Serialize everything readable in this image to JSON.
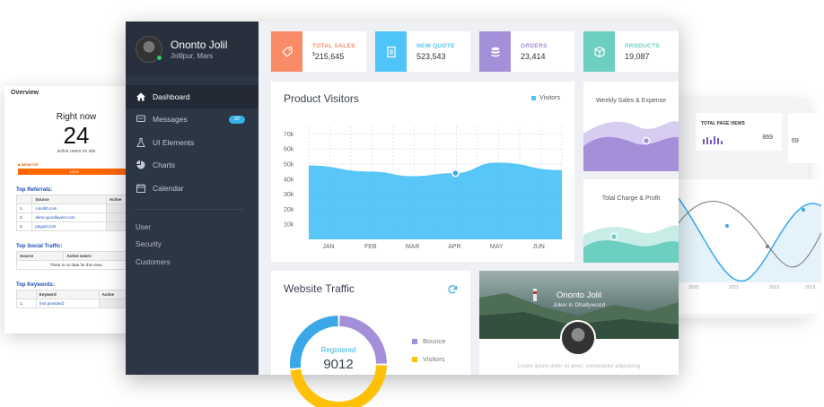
{
  "overview": {
    "title": "Overview",
    "right_now": "Right now",
    "active_count": "24",
    "active_sub": "active users on site",
    "device_label": "DESKTOP",
    "device_pct": "100%",
    "top_referrals": "Top Referrals:",
    "col_source": "Source",
    "col_active": "Active",
    "referrals": [
      "colorlib.com",
      "demo.goodlayers.com",
      "paypal.com"
    ],
    "top_social": "Top Social Traffic:",
    "col_active_users": "Active Users",
    "no_data": "There is no data for this view.",
    "top_keywords": "Top Keywords:",
    "col_keyword": "Keyword",
    "keyword_1": "(not provided)"
  },
  "right_card": {
    "total_page_views": "TOTAL PAGE VIEWS",
    "page_views_value": "869",
    "second_value": "69",
    "years": [
      "2010",
      "2011",
      "2012",
      "2013"
    ]
  },
  "sidebar": {
    "user_name": "Ononto Jolil",
    "user_location": "Jolilpur, Mars",
    "nav": [
      {
        "label": "Dashboard",
        "icon": "home-icon"
      },
      {
        "label": "Messages",
        "icon": "chat-icon",
        "badge": "32"
      },
      {
        "label": "UI Elements",
        "icon": "flask-icon"
      },
      {
        "label": "Charts",
        "icon": "pie-chart-icon"
      },
      {
        "label": "Calendar",
        "icon": "calendar-icon"
      }
    ],
    "sub_items": [
      "User",
      "Security",
      "Customers"
    ]
  },
  "stats": [
    {
      "label": "TOTAL SALES",
      "value": "215,645",
      "prefix": "$",
      "color": "#f98b67",
      "icon": "tag-icon"
    },
    {
      "label": "NEW QUOTE",
      "value": "523,543",
      "prefix": "",
      "color": "#4fc4f7",
      "icon": "document-icon"
    },
    {
      "label": "ORDERS",
      "value": "23,414",
      "prefix": "",
      "color": "#a58fd8",
      "icon": "database-icon"
    },
    {
      "label": "PRODUCTS",
      "value": "19,087",
      "prefix": "",
      "color": "#6dcfc0",
      "icon": "cube-icon"
    }
  ],
  "product_visitors": {
    "title": "Product Visitors",
    "legend": "Visitors",
    "color": "#4fc4f7"
  },
  "chart_data": {
    "type": "area",
    "title": "Product Visitors",
    "categories": [
      "JAN",
      "FEB",
      "MAR",
      "APR",
      "MAY",
      "JUN"
    ],
    "series": [
      {
        "name": "Visitors",
        "values": [
          49000,
          45000,
          42000,
          44000,
          51000,
          46000
        ]
      }
    ],
    "y_ticks": [
      "10k",
      "20k",
      "30k",
      "40k",
      "50k",
      "60k",
      "70k"
    ],
    "ylim": [
      0,
      75000
    ],
    "grid": true,
    "legend_position": "top-right"
  },
  "weekly_sales": {
    "title": "Weekly Sales & Expense"
  },
  "total_charge": {
    "title": "Total Charge & Profit"
  },
  "website_traffic": {
    "title": "Website Traffic",
    "center_label": "Registered",
    "center_value": "9012",
    "segments": [
      {
        "name": "Bounce",
        "value": 0.25,
        "color": "#a58fd8"
      },
      {
        "name": "Visitors",
        "value": 0.48,
        "color": "#ffc107"
      },
      {
        "name": "Registered",
        "value": 0.27,
        "color": "#3aa8e8"
      }
    ],
    "legend": [
      {
        "name": "Bounce",
        "color": "#a58fd8"
      },
      {
        "name": "Visitors",
        "color": "#ffc107"
      }
    ]
  },
  "profile_card": {
    "name": "Ononto Jolil",
    "subtitle": "Joker in Dhallywood",
    "bio": "Lorem ipsum dolor sit amet, consectetur adipisicing"
  }
}
